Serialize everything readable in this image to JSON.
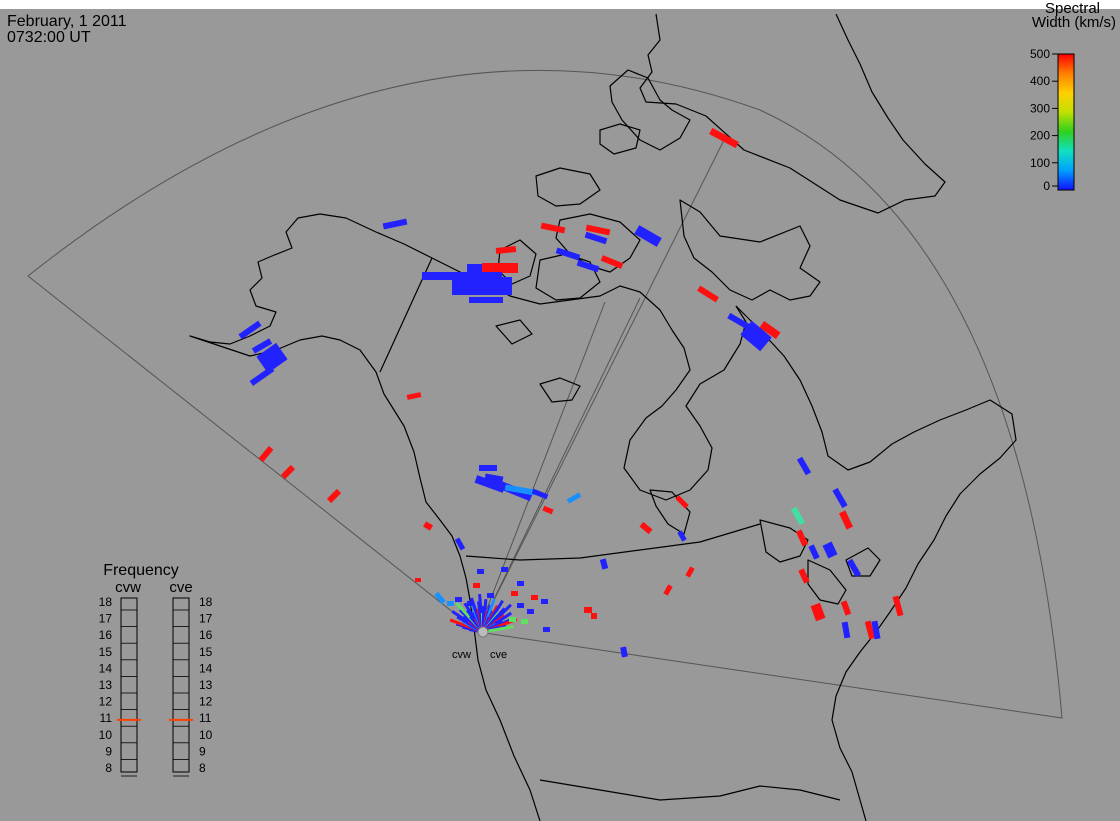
{
  "header": {
    "date": "February, 1 2011",
    "time": "0732:00 UT"
  },
  "colorbar": {
    "title_line1": "Spectral",
    "title_line2": "Width (km/s)",
    "ticks": [
      "500",
      "400",
      "300",
      "200",
      "100",
      "0"
    ],
    "min": 0,
    "max": 500,
    "colors": [
      "#1010ff",
      "#00a0ff",
      "#10e0c0",
      "#30d020",
      "#c0e000",
      "#ffd000",
      "#ff8000",
      "#ff0000"
    ]
  },
  "frequency_panel": {
    "title": "Frequency",
    "radars": [
      {
        "code": "cvw",
        "value_mhz": 10.9
      },
      {
        "code": "cve",
        "value_mhz": 10.9
      }
    ],
    "scale": [
      "18",
      "17",
      "16",
      "15",
      "14",
      "13",
      "12",
      "11",
      "10",
      "9",
      "8"
    ],
    "indicator_color": "#ff4000"
  },
  "radar_sites": [
    {
      "code": "cvw"
    },
    {
      "code": "cve"
    }
  ],
  "colors": {
    "background": "#999999",
    "coastline": "#000000",
    "fov_outline": "#555555"
  }
}
